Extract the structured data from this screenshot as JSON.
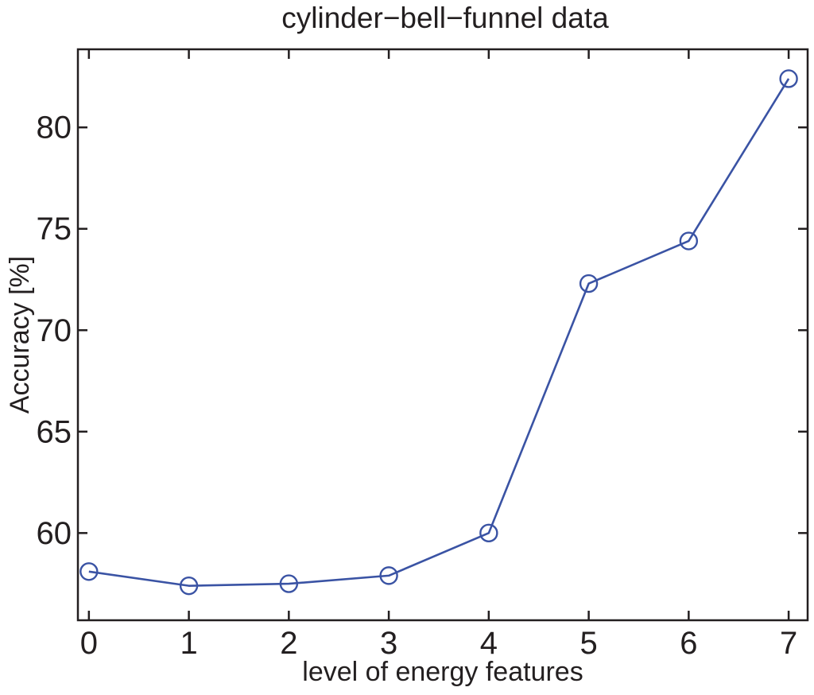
{
  "chart_data": {
    "type": "line",
    "title": "cylinder−bell−funnel data",
    "xlabel": "level of energy features",
    "ylabel": "Accuracy [%]",
    "x": [
      0,
      1,
      2,
      3,
      4,
      5,
      6,
      7
    ],
    "values": [
      58.1,
      57.4,
      57.5,
      57.9,
      60.0,
      72.3,
      74.4,
      82.4
    ],
    "x_ticks": [
      0,
      1,
      2,
      3,
      4,
      5,
      6,
      7
    ],
    "y_ticks": [
      60,
      65,
      70,
      75,
      80
    ],
    "xlim": [
      -0.11,
      7.19
    ],
    "ylim": [
      55.7,
      83.85
    ],
    "grid": false,
    "legend": false,
    "marker": "open-circle",
    "line_color": "#3A53A4",
    "axis_color": "#231f20",
    "background_color": "#ffffff"
  }
}
